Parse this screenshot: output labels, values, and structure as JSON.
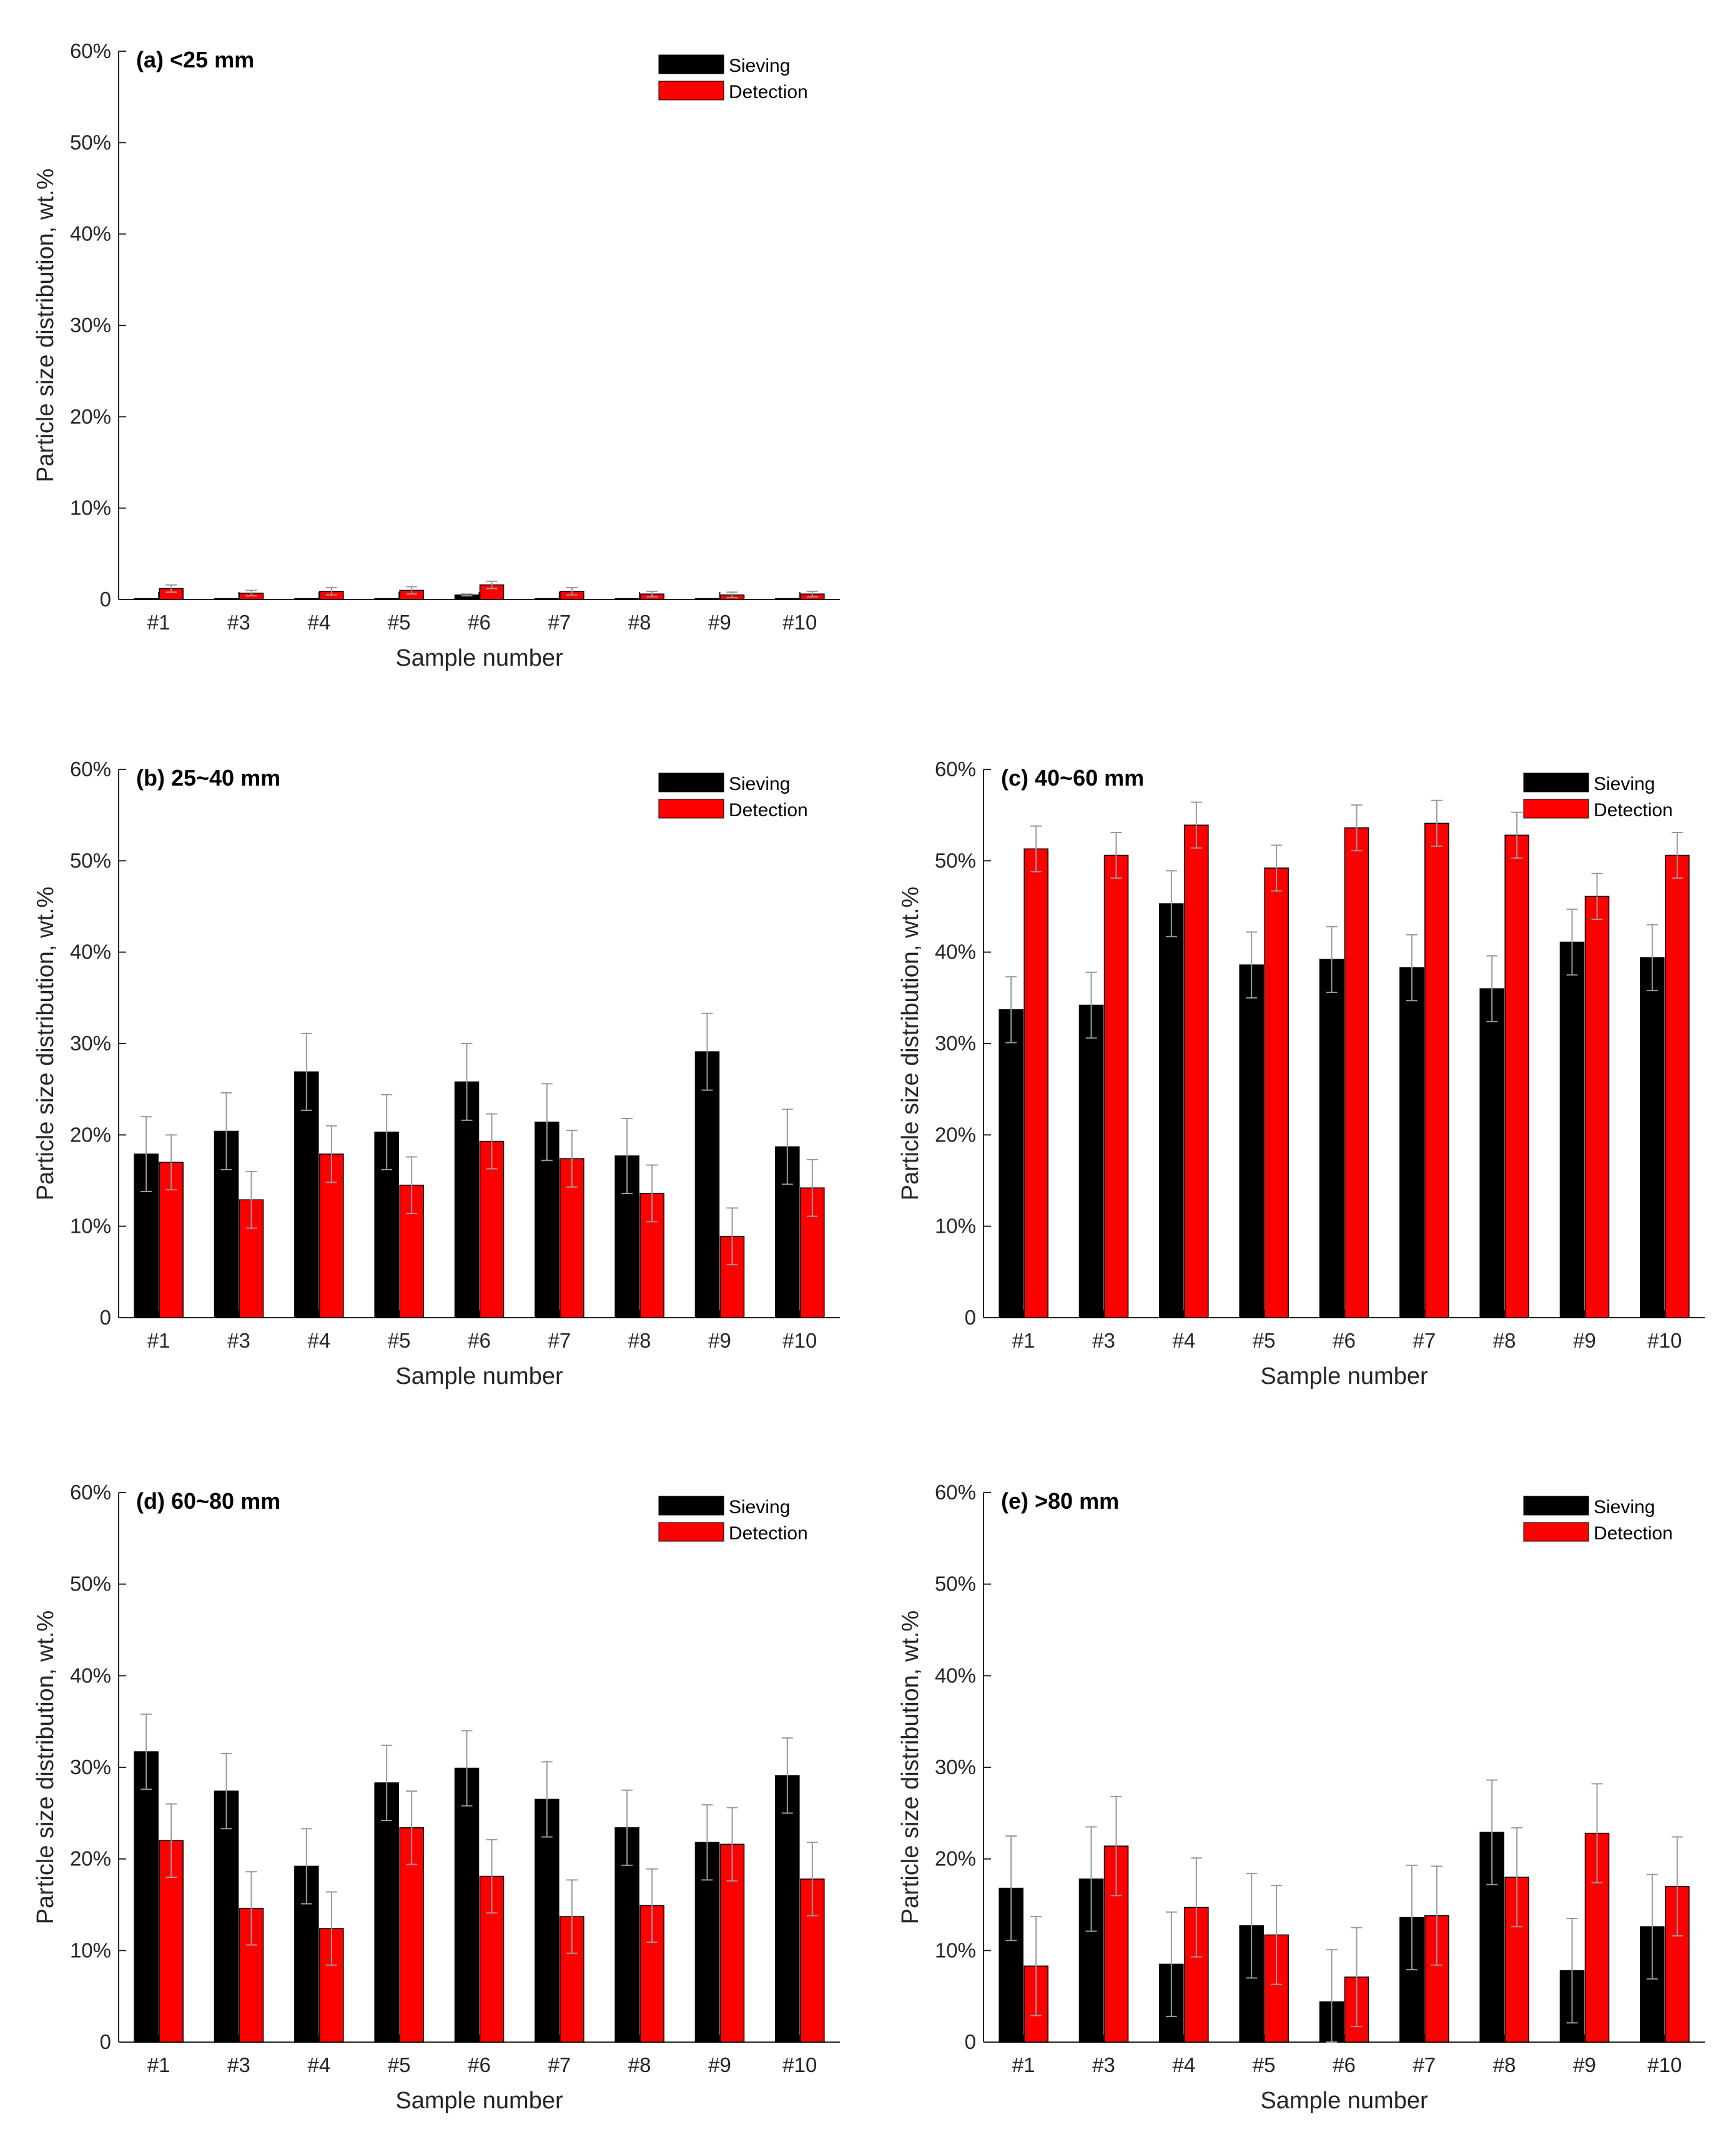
{
  "colors": {
    "sieving": "#000000",
    "detection": "#ff0000",
    "errorbar": "#9a9a9a",
    "axis": "#262626"
  },
  "axis_labels": {
    "y": "Particle size distribution, wt.%",
    "x": "Sample number"
  },
  "y_ticks": [
    "0",
    "10%",
    "20%",
    "30%",
    "40%",
    "50%",
    "60%"
  ],
  "legend": {
    "sieving": "Sieving",
    "detection": "Detection"
  },
  "chart_data": [
    {
      "type": "bar",
      "id": "a",
      "title": "(a) <25 mm",
      "categories": [
        "#1",
        "#3",
        "#4",
        "#5",
        "#6",
        "#7",
        "#8",
        "#9",
        "#10"
      ],
      "ylim": [
        0,
        60
      ],
      "xlabel": "Sample number",
      "ylabel": "Particle size distribution, wt.%",
      "series": [
        {
          "name": "Sieving",
          "values": [
            0.1,
            0.1,
            0.1,
            0.1,
            0.5,
            0.1,
            0.1,
            0.1,
            0.1
          ],
          "errors": [
            0,
            0,
            0,
            0,
            0.1,
            0,
            0,
            0,
            0
          ]
        },
        {
          "name": "Detection",
          "values": [
            1.2,
            0.7,
            0.9,
            1.0,
            1.6,
            0.9,
            0.6,
            0.5,
            0.6
          ],
          "errors": [
            0.4,
            0.3,
            0.4,
            0.4,
            0.4,
            0.4,
            0.3,
            0.3,
            0.3
          ]
        }
      ]
    },
    {
      "type": "bar",
      "id": "b",
      "title": "(b) 25~40 mm",
      "categories": [
        "#1",
        "#3",
        "#4",
        "#5",
        "#6",
        "#7",
        "#8",
        "#9",
        "#10"
      ],
      "ylim": [
        0,
        60
      ],
      "xlabel": "Sample number",
      "ylabel": "Particle size distribution, wt.%",
      "series": [
        {
          "name": "Sieving",
          "values": [
            17.9,
            20.4,
            26.9,
            20.3,
            25.8,
            21.4,
            17.7,
            29.1,
            18.7
          ],
          "errors": [
            4.1,
            4.2,
            4.2,
            4.1,
            4.2,
            4.2,
            4.1,
            4.2,
            4.1
          ]
        },
        {
          "name": "Detection",
          "values": [
            17.0,
            12.9,
            17.9,
            14.5,
            19.3,
            17.4,
            13.6,
            8.9,
            14.2
          ],
          "errors": [
            3.0,
            3.1,
            3.1,
            3.1,
            3.0,
            3.1,
            3.1,
            3.1,
            3.1
          ]
        }
      ]
    },
    {
      "type": "bar",
      "id": "c",
      "title": "(c) 40~60 mm",
      "categories": [
        "#1",
        "#3",
        "#4",
        "#5",
        "#6",
        "#7",
        "#8",
        "#9",
        "#10"
      ],
      "ylim": [
        0,
        60
      ],
      "xlabel": "Sample number",
      "ylabel": "Particle size distribution, wt.%",
      "series": [
        {
          "name": "Sieving",
          "values": [
            33.7,
            34.2,
            45.3,
            38.6,
            39.2,
            38.3,
            36.0,
            41.1,
            39.4
          ],
          "errors": [
            3.6,
            3.6,
            3.6,
            3.6,
            3.6,
            3.6,
            3.6,
            3.6,
            3.6
          ]
        },
        {
          "name": "Detection",
          "values": [
            51.3,
            50.6,
            53.9,
            49.2,
            53.6,
            54.1,
            52.8,
            46.1,
            50.6
          ],
          "errors": [
            2.5,
            2.5,
            2.5,
            2.5,
            2.5,
            2.5,
            2.5,
            2.5,
            2.5
          ]
        }
      ]
    },
    {
      "type": "bar",
      "id": "d",
      "title": "(d) 60~80 mm",
      "categories": [
        "#1",
        "#3",
        "#4",
        "#5",
        "#6",
        "#7",
        "#8",
        "#9",
        "#10"
      ],
      "ylim": [
        0,
        60
      ],
      "xlabel": "Sample number",
      "ylabel": "Particle size distribution, wt.%",
      "series": [
        {
          "name": "Sieving",
          "values": [
            31.7,
            27.4,
            19.2,
            28.3,
            29.9,
            26.5,
            23.4,
            21.8,
            29.1
          ],
          "errors": [
            4.1,
            4.1,
            4.1,
            4.1,
            4.1,
            4.1,
            4.1,
            4.1,
            4.1
          ]
        },
        {
          "name": "Detection",
          "values": [
            22.0,
            14.6,
            12.4,
            23.4,
            18.1,
            13.7,
            14.9,
            21.6,
            17.8
          ],
          "errors": [
            4.0,
            4.0,
            4.0,
            4.0,
            4.0,
            4.0,
            4.0,
            4.0,
            4.0
          ]
        }
      ]
    },
    {
      "type": "bar",
      "id": "e",
      "title": "(e) >80 mm",
      "categories": [
        "#1",
        "#3",
        "#4",
        "#5",
        "#6",
        "#7",
        "#8",
        "#9",
        "#10"
      ],
      "ylim": [
        0,
        60
      ],
      "xlabel": "Sample number",
      "ylabel": "Particle size distribution, wt.%",
      "series": [
        {
          "name": "Sieving",
          "values": [
            16.8,
            17.8,
            8.5,
            12.7,
            4.4,
            13.6,
            22.9,
            7.8,
            12.6
          ],
          "errors": [
            5.7,
            5.7,
            5.7,
            5.7,
            5.7,
            5.7,
            5.7,
            5.7,
            5.7
          ]
        },
        {
          "name": "Detection",
          "values": [
            8.3,
            21.4,
            14.7,
            11.7,
            7.1,
            13.8,
            18.0,
            22.8,
            17.0
          ],
          "errors": [
            5.4,
            5.4,
            5.4,
            5.4,
            5.4,
            5.4,
            5.4,
            5.4,
            5.4
          ]
        }
      ]
    }
  ]
}
